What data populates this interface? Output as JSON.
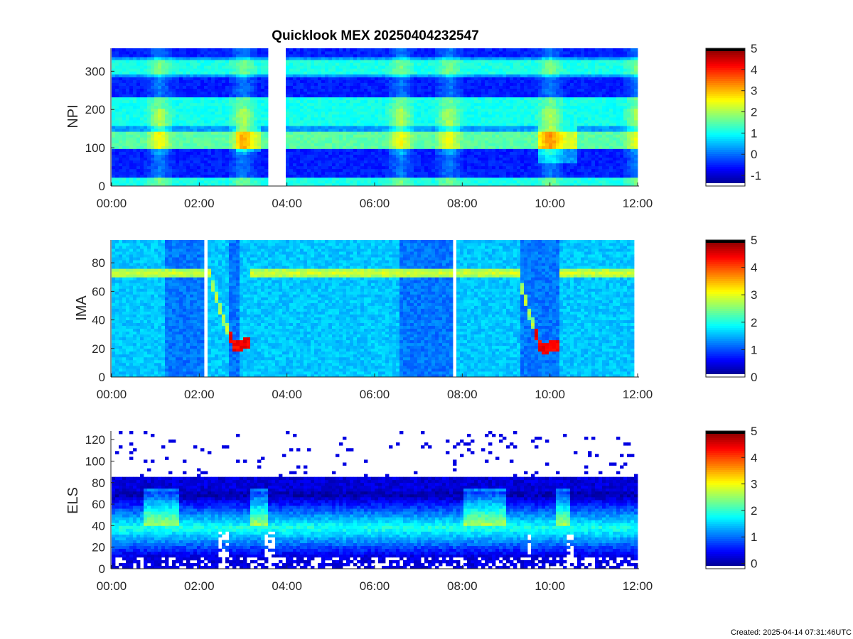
{
  "figure": {
    "title": "Quicklook MEX 20250404232547",
    "created": "Created: 2025-04-14 07:31:46UTC"
  },
  "chart_data": [
    {
      "type": "heatmap",
      "ylabel": "NPI",
      "xlim": [
        "00:00",
        "12:00"
      ],
      "x_ticks": [
        "00:00",
        "02:00",
        "04:00",
        "06:00",
        "08:00",
        "10:00",
        "12:00"
      ],
      "ylim": [
        0,
        360
      ],
      "y_ticks": [
        0,
        100,
        200,
        300
      ],
      "colorbar": {
        "range": [
          -1.5,
          5
        ],
        "ticks": [
          -1,
          0,
          1,
          2,
          3,
          4,
          5
        ]
      },
      "data_gaps": [
        [
          3.6,
          4.0
        ]
      ],
      "features": {
        "bright_bands": [
          [
            95,
            145
          ],
          [
            160,
            230
          ],
          [
            290,
            330
          ],
          [
            0,
            20
          ]
        ],
        "dark_bands": [
          [
            20,
            95
          ],
          [
            235,
            285
          ],
          [
            335,
            360
          ]
        ],
        "transitions_hours": [
          1.1,
          3.0,
          6.6,
          7.7,
          10.0,
          12.0
        ]
      }
    },
    {
      "type": "heatmap",
      "ylabel": "IMA",
      "xlim": [
        "00:00",
        "12:00"
      ],
      "x_ticks": [
        "00:00",
        "02:00",
        "04:00",
        "06:00",
        "08:00",
        "10:00",
        "12:00"
      ],
      "ylim": [
        0,
        96
      ],
      "y_ticks": [
        0,
        20,
        40,
        60,
        80
      ],
      "colorbar": {
        "range": [
          0,
          5
        ],
        "ticks": [
          0,
          1,
          2,
          3,
          4,
          5
        ]
      },
      "data_gaps": [
        [
          2.1,
          2.22
        ],
        [
          7.82,
          7.9
        ]
      ],
      "features": {
        "beam_line": {
          "center": 73,
          "width": 8
        },
        "dips": [
          {
            "start": 2.25,
            "min": 2.8,
            "end": 3.15,
            "min_value": 21
          },
          {
            "start": 9.3,
            "min": 9.8,
            "end": 10.25,
            "min_value": 20
          }
        ],
        "dark_regions": [
          [
            1.2,
            2.1
          ],
          [
            2.7,
            2.95
          ],
          [
            6.6,
            7.82
          ],
          [
            9.3,
            10.2
          ]
        ],
        "data_end_hours": 11.9
      }
    },
    {
      "type": "heatmap",
      "ylabel": "ELS",
      "xlim": [
        "00:00",
        "12:00"
      ],
      "x_ticks": [
        "00:00",
        "02:00",
        "04:00",
        "06:00",
        "08:00",
        "10:00",
        "12:00"
      ],
      "ylim": [
        0,
        128
      ],
      "y_ticks": [
        0,
        20,
        40,
        60,
        80,
        100,
        120
      ],
      "colorbar": {
        "range": [
          -0.2,
          5
        ],
        "ticks": [
          0,
          1,
          2,
          3,
          4,
          5
        ]
      },
      "features": {
        "main_band": {
          "center": 38,
          "width": 28
        },
        "noise_above": 85,
        "bright_intervals": [
          [
            0.7,
            1.5
          ],
          [
            3.2,
            3.6
          ],
          [
            8.0,
            9.0
          ],
          [
            10.1,
            10.45
          ]
        ],
        "gap_intervals": [
          [
            2.45,
            2.65
          ],
          [
            3.5,
            3.7
          ],
          [
            9.45,
            9.6
          ],
          [
            10.35,
            10.55
          ]
        ]
      }
    }
  ]
}
